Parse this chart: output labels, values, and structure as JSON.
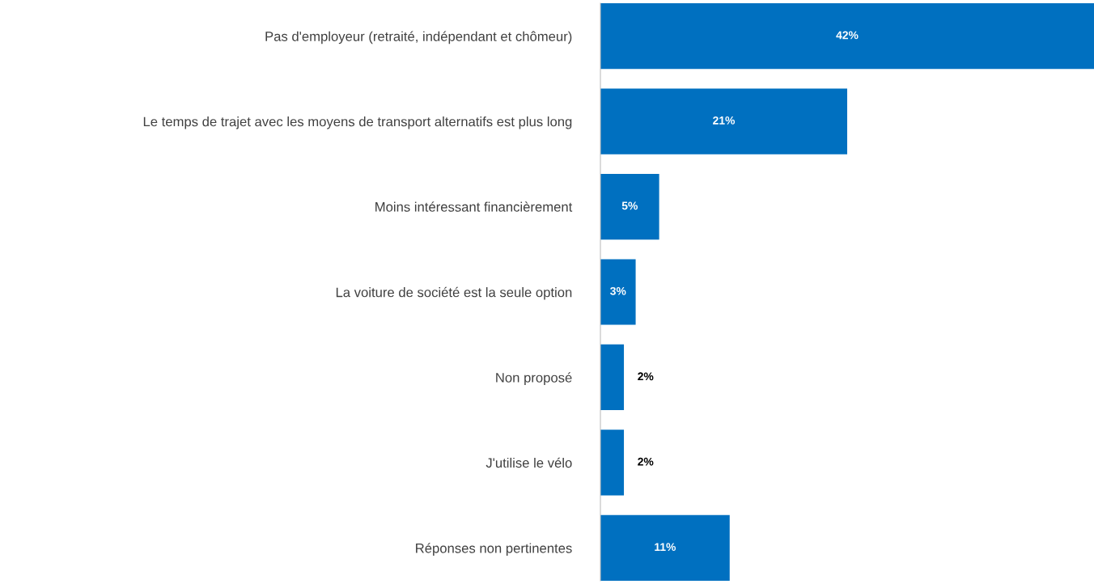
{
  "chart_data": {
    "type": "bar",
    "orientation": "horizontal",
    "categories": [
      "Pas d'employeur (retraité, indépendant et chômeur)",
      "Le temps de trajet avec les moyens de transport alternatifs est plus long",
      "Moins intéressant financièrement",
      "La voiture de société est la seule option",
      "Non proposé",
      "J'utilise le vélo",
      "Réponses non pertinentes"
    ],
    "values": [
      42,
      21,
      5,
      3,
      2,
      2,
      11
    ],
    "value_labels": [
      "42%",
      "21%",
      "5%",
      "3%",
      "2%",
      "2%",
      "11%"
    ],
    "color": "#0070c0",
    "xlim": [
      0,
      42
    ],
    "tick_labels": "y",
    "grid": false,
    "legend": false
  }
}
